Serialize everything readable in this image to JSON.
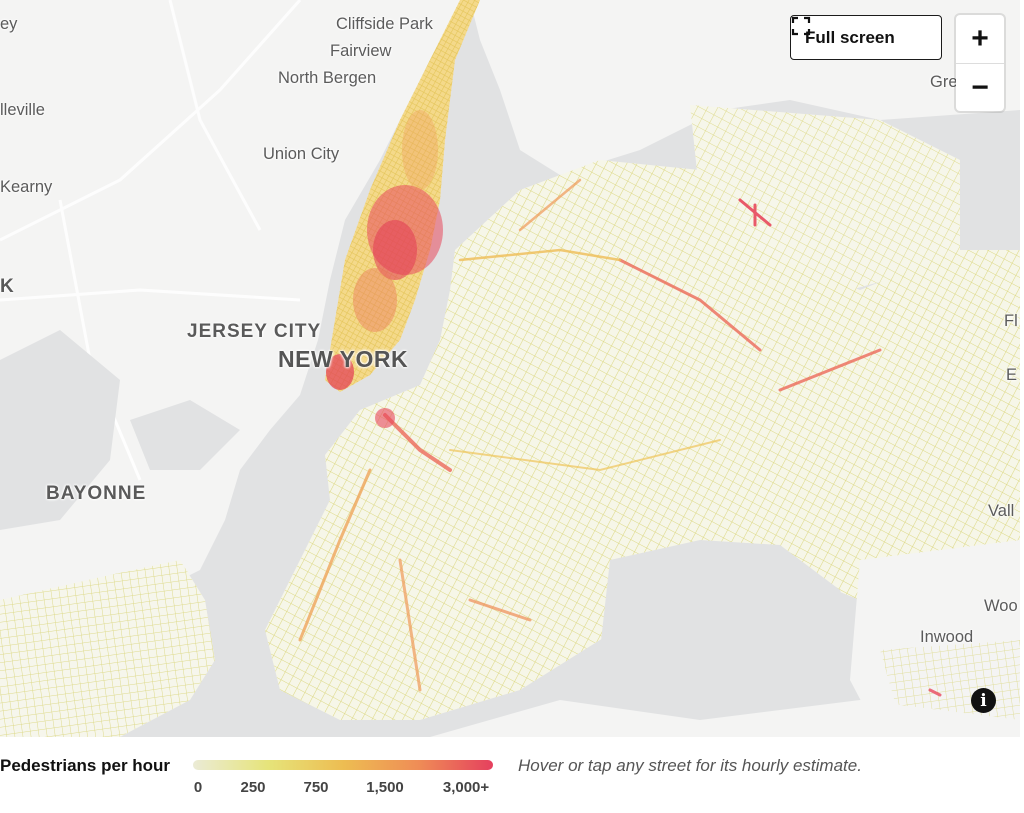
{
  "map": {
    "labels": {
      "cliffside_park": "Cliffside Park",
      "fairview": "Fairview",
      "north_bergen": "North Bergen",
      "union_city": "Union City",
      "jersey_city": "JERSEY CITY",
      "new_york": "NEW YORK",
      "bayonne": "BAYONNE",
      "inwood": "Inwood",
      "partial_ey": "ey",
      "partial_lleville": "lleville",
      "partial_kearny": "Kearny",
      "partial_k": "K",
      "partial_gre": "Gre",
      "partial_fl": "Fl",
      "partial_e": "E",
      "partial_vall": "Vall",
      "partial_woo": "Woo"
    }
  },
  "controls": {
    "fullscreen_label": "Full screen",
    "zoom_in": "+",
    "zoom_out": "−",
    "info": "i"
  },
  "legend": {
    "title": "Pedestrians per hour",
    "ticks": [
      "0",
      "250",
      "750",
      "1,500",
      "3,000+"
    ],
    "hint": "Hover or tap any street for its hourly estimate.",
    "colors": [
      "#ebebd6",
      "#e6e47a",
      "#edbd52",
      "#ef8d56",
      "#e5405e"
    ]
  },
  "colors": {
    "water": "#e1e2e3",
    "land": "#f4f4f3",
    "street_low": "#e3df86",
    "street_mid": "#efbd55",
    "street_high": "#e8485c"
  }
}
